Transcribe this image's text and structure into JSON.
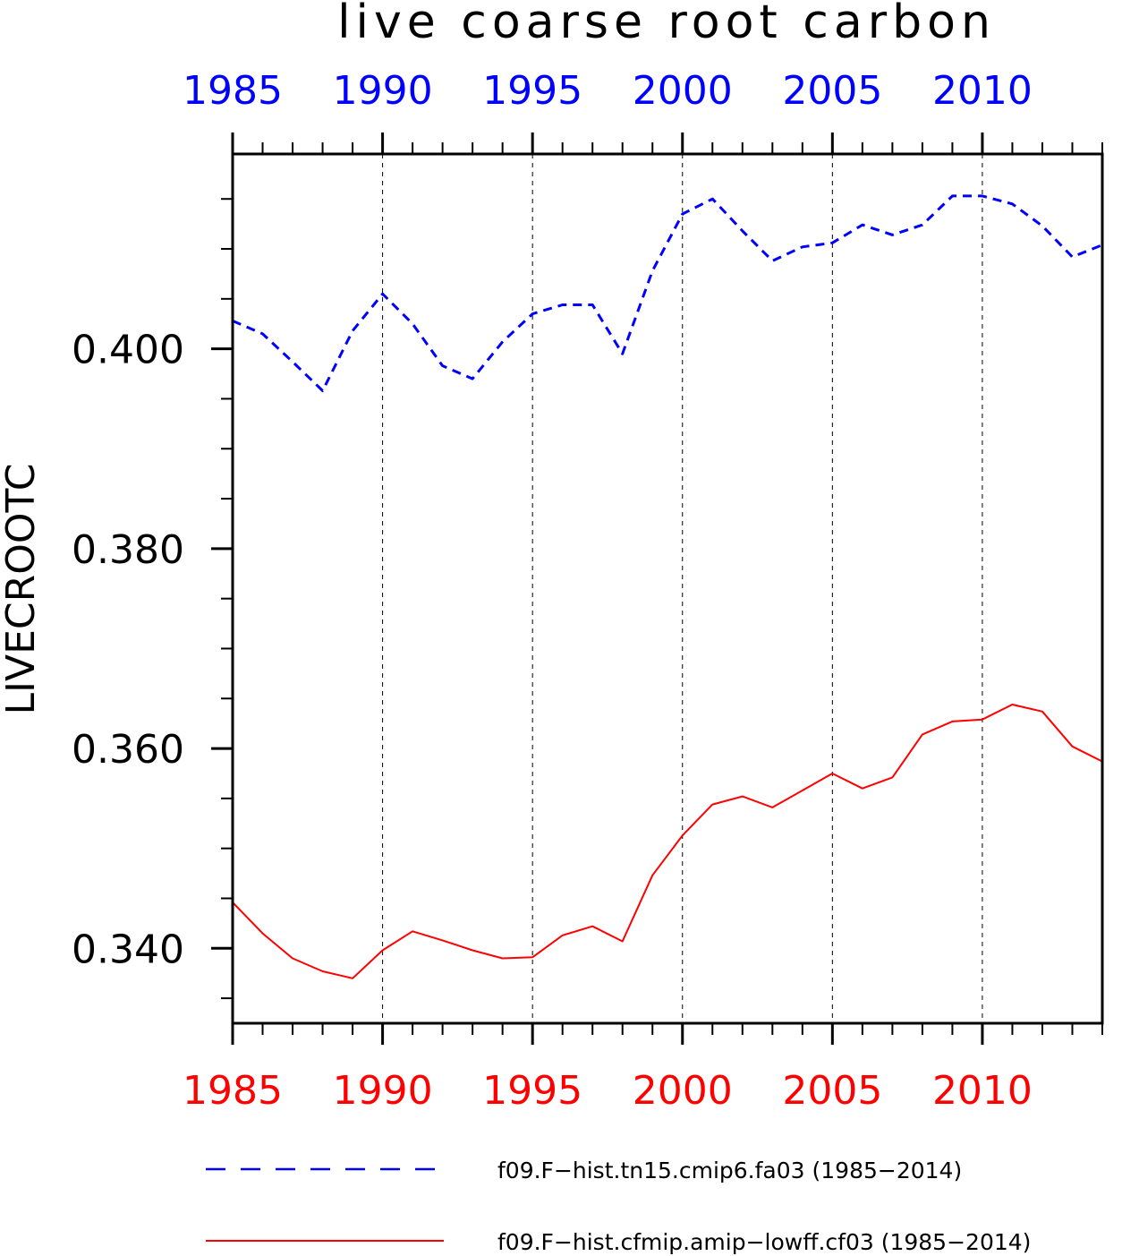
{
  "chart_data": {
    "type": "line",
    "title": "live coarse root carbon",
    "ylabel": "LIVECROOTC",
    "xlabel": "",
    "xlim": [
      1985,
      2014
    ],
    "ylim": [
      0.3325,
      0.4195
    ],
    "x_ticks": [
      "1985",
      "1990",
      "1995",
      "2000",
      "2005",
      "2010"
    ],
    "y_ticks": [
      "0.340",
      "0.360",
      "0.380",
      "0.400"
    ],
    "grid": "vertical dashed at major x ticks",
    "legend_placement": "bottom",
    "x": [
      1985,
      1986,
      1987,
      1988,
      1989,
      1990,
      1991,
      1992,
      1993,
      1994,
      1995,
      1996,
      1997,
      1998,
      1999,
      2000,
      2001,
      2002,
      2003,
      2004,
      2005,
      2006,
      2007,
      2008,
      2009,
      2010,
      2011,
      2012,
      2013,
      2014
    ],
    "series": [
      {
        "name": "f09.F−hist.tn15.cmip6.fa03 (1985−2014)",
        "color": "#0000ff",
        "style": "dashed",
        "axis": "top",
        "values": [
          0.4028,
          0.4015,
          0.3987,
          0.3958,
          0.4018,
          0.4055,
          0.4025,
          0.3983,
          0.397,
          0.4007,
          0.4035,
          0.4044,
          0.4044,
          0.3995,
          0.4078,
          0.4135,
          0.415,
          0.4118,
          0.4088,
          0.4102,
          0.4106,
          0.4124,
          0.4114,
          0.4124,
          0.4153,
          0.4153,
          0.4145,
          0.4123,
          0.4092,
          0.4104
        ]
      },
      {
        "name": "f09.F−hist.cfmip.amip−lowff.cf03 (1985−2014)",
        "color": "#ff0000",
        "style": "solid",
        "axis": "bottom",
        "values": [
          0.3446,
          0.3415,
          0.339,
          0.3377,
          0.337,
          0.3398,
          0.3417,
          0.3408,
          0.3398,
          0.339,
          0.3391,
          0.3413,
          0.3422,
          0.3407,
          0.3473,
          0.3513,
          0.3544,
          0.3552,
          0.3541,
          0.3558,
          0.3575,
          0.356,
          0.3571,
          0.3614,
          0.3627,
          0.3629,
          0.3644,
          0.3637,
          0.3602,
          0.3587
        ]
      }
    ]
  }
}
